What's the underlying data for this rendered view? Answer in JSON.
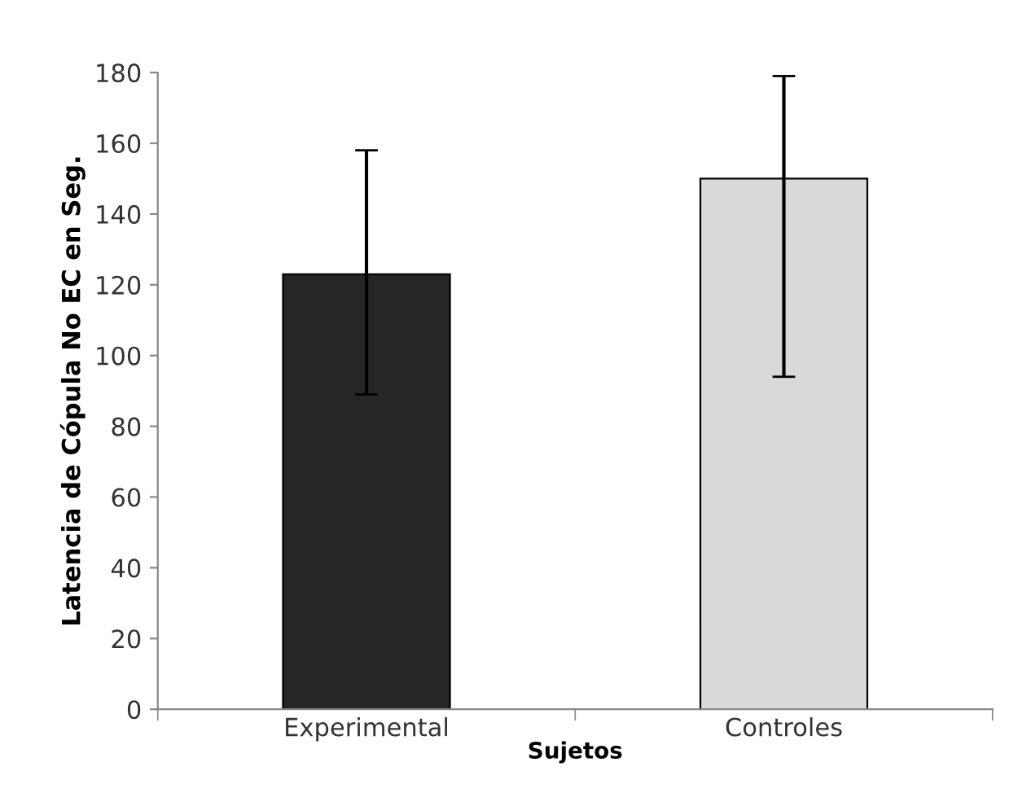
{
  "chart_data": {
    "type": "bar",
    "xlabel": "Sujetos",
    "ylabel": "Latencia de Cópula No EC en Seg.",
    "categories": [
      "Experimental",
      "Controles"
    ],
    "values": [
      123,
      150
    ],
    "colors": [
      "#262626",
      "#d9d9d9"
    ],
    "errors": [
      [
        89,
        158
      ],
      [
        94,
        179
      ]
    ],
    "ylim": [
      0,
      180
    ],
    "yticks": [
      0,
      20,
      40,
      60,
      80,
      100,
      120,
      140,
      160,
      180
    ],
    "grid": false,
    "legend": false
  }
}
